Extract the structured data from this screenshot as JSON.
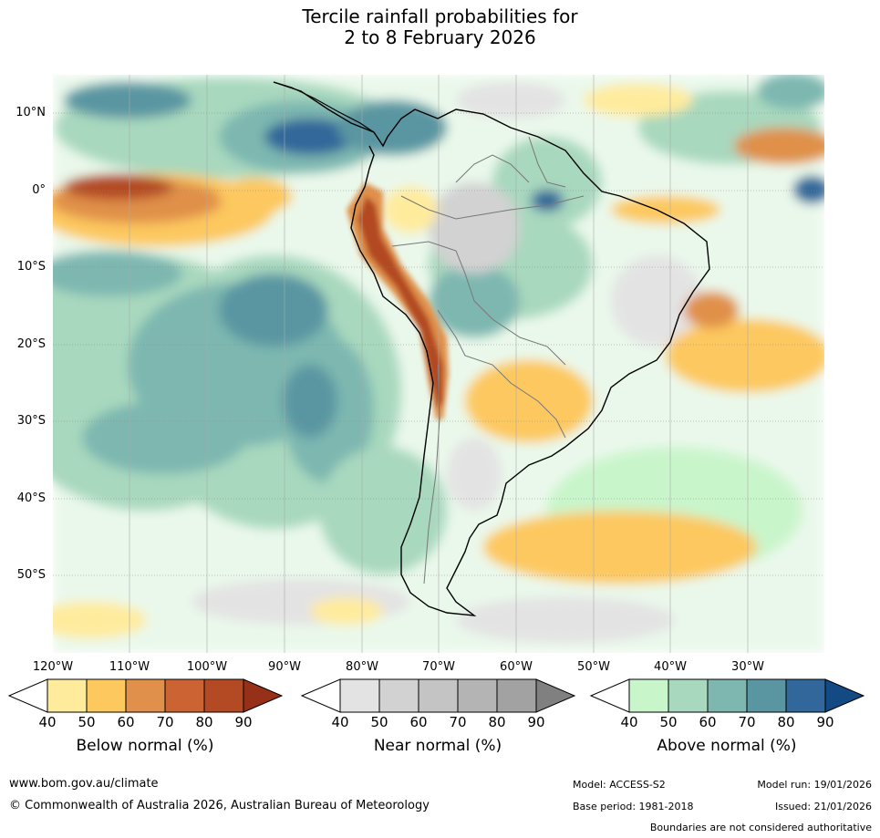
{
  "title": {
    "line1": "Tercile rainfall probabilities for",
    "line2": "2 to 8 February 2026"
  },
  "map": {
    "latitude_labels": [
      "10°N",
      "0°",
      "10°S",
      "20°S",
      "30°S",
      "40°S",
      "50°S"
    ],
    "longitude_labels": [
      "120°W",
      "110°W",
      "100°W",
      "90°W",
      "80°W",
      "70°W",
      "60°W",
      "50°W",
      "40°W",
      "30°W"
    ]
  },
  "legends": [
    {
      "title": "Below normal (%)",
      "ticks": [
        "40",
        "50",
        "60",
        "70",
        "80",
        "90"
      ],
      "colors": [
        "#ffffff",
        "#ffeb9c",
        "#fdc85e",
        "#e0904a",
        "#cc6332",
        "#b34a24",
        "#963018"
      ]
    },
    {
      "title": "Near normal (%)",
      "ticks": [
        "40",
        "50",
        "60",
        "70",
        "80",
        "90"
      ],
      "colors": [
        "#ffffff",
        "#e3e3e3",
        "#d2d2d2",
        "#c4c4c4",
        "#b4b4b4",
        "#a2a2a2",
        "#808080"
      ]
    },
    {
      "title": "Above normal (%)",
      "ticks": [
        "40",
        "50",
        "60",
        "70",
        "80",
        "90"
      ],
      "colors": [
        "#ffffff",
        "#c9f5cb",
        "#a8d8be",
        "#7db7b0",
        "#5a96a2",
        "#31679a",
        "#134a84"
      ]
    }
  ],
  "footer": {
    "website": "www.bom.gov.au/climate",
    "copyright": "© Commonwealth of Australia 2026, Australian Bureau of Meteorology",
    "model": "Model: ACCESS-S2",
    "base_period": "Base period: 1981-2018",
    "model_run": "Model run: 19/01/2026",
    "issued": "Issued: 21/01/2026",
    "disclaimer": "Boundaries are not considered authoritative"
  }
}
